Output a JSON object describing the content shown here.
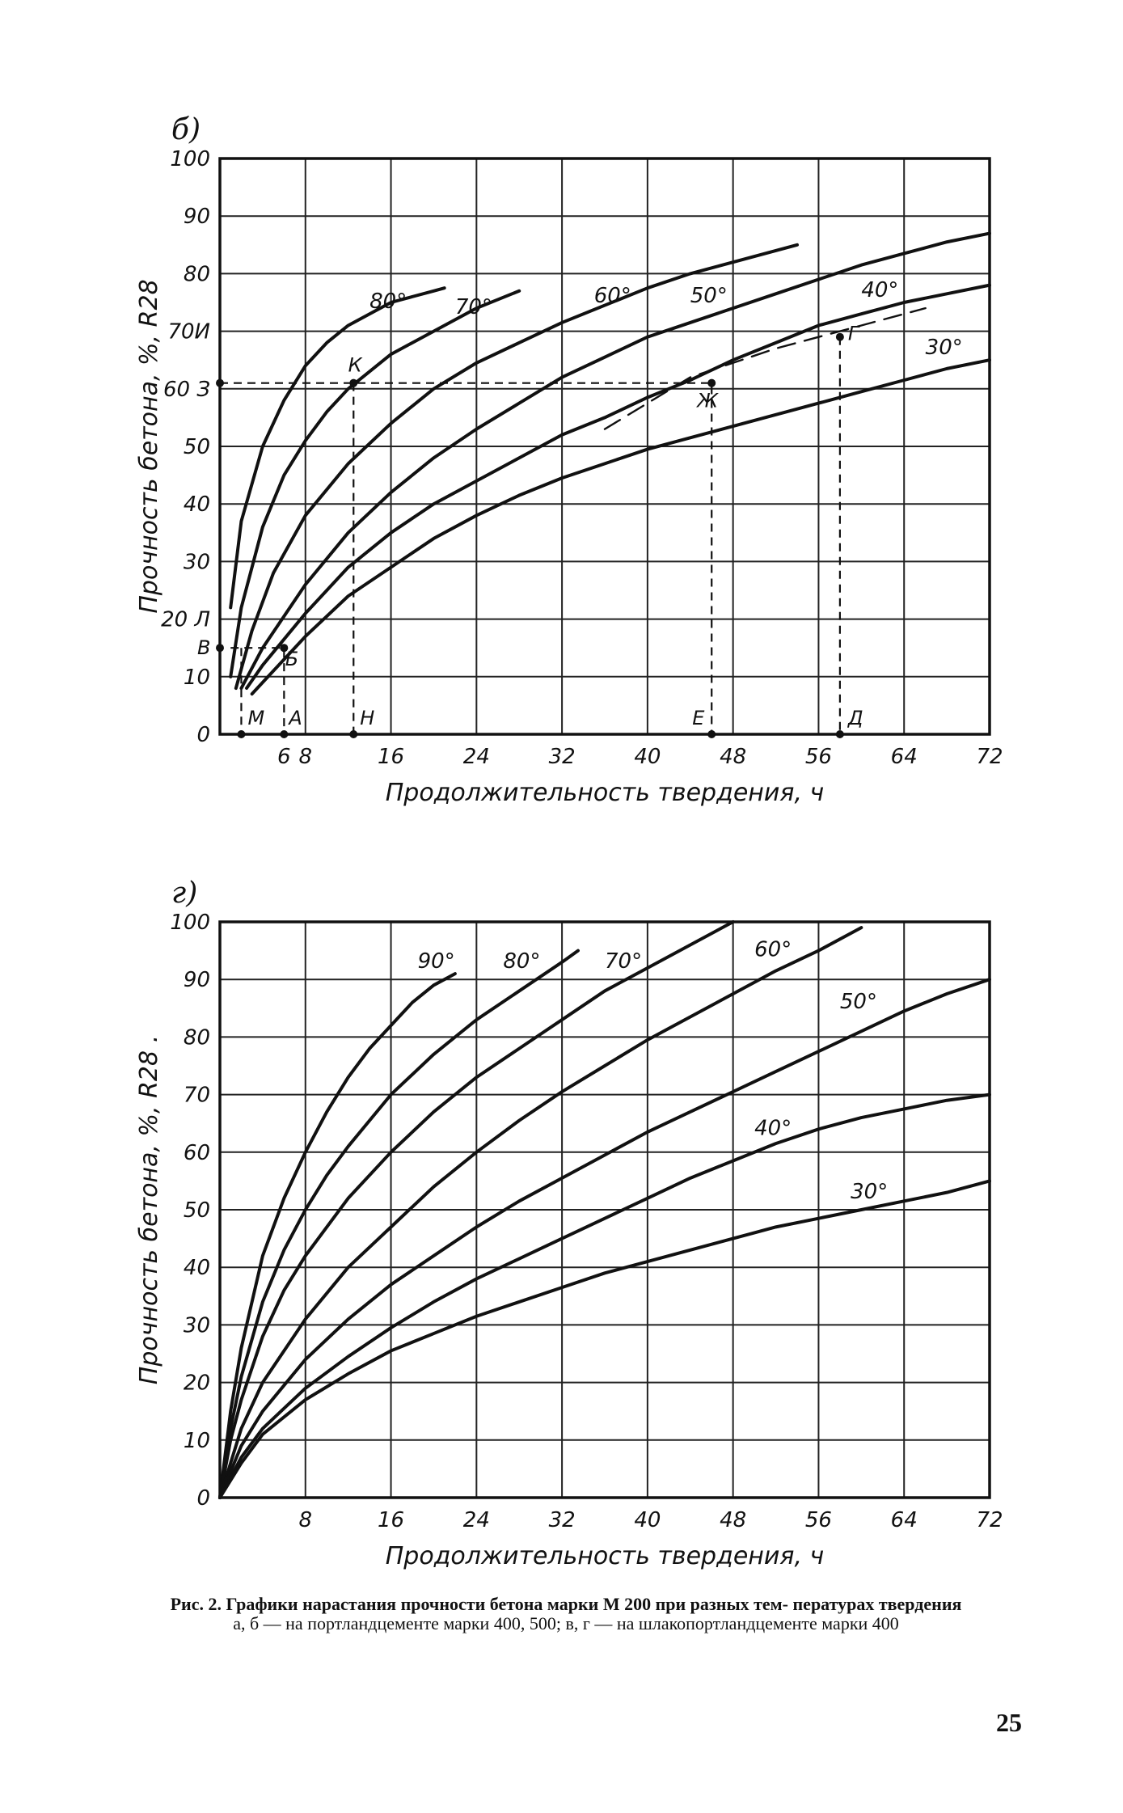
{
  "page": {
    "number": "25"
  },
  "caption": {
    "title": "Рис. 2. Графики нарастания прочности бетона марки М 200 при разных тем- пературах твердения",
    "note": "а, б — на портландцементе марки 400, 500; в, г — на шлакопортландцементе марки 400"
  },
  "chart_data": [
    {
      "panel": "б)",
      "type": "line",
      "xlabel": "Продолжительность твердения, ч",
      "ylabel": "Прочность бетона, %, R28",
      "xlim": [
        0,
        72
      ],
      "ylim": [
        0,
        100
      ],
      "grid": true,
      "x_ticks": [
        "6",
        "8",
        "16",
        "24",
        "32",
        "40",
        "48",
        "56",
        "64",
        "72"
      ],
      "x_tick_values": [
        6,
        8,
        16,
        24,
        32,
        40,
        48,
        56,
        64,
        72
      ],
      "y_ticks": [
        "0",
        "10",
        "20 Л",
        "30",
        "40",
        "50",
        "60 З",
        "70И",
        "80",
        "90",
        "100"
      ],
      "y_tick_values": [
        0,
        10,
        20,
        30,
        40,
        50,
        60,
        70,
        80,
        90,
        100
      ],
      "series": [
        {
          "name": "80°",
          "label_at": [
            14,
            74
          ],
          "x": [
            1,
            2,
            4,
            6,
            8,
            10,
            12,
            14,
            16,
            18,
            20,
            21
          ],
          "y": [
            22,
            37,
            50,
            58,
            64,
            68,
            71,
            73,
            75,
            76,
            77,
            77.5
          ]
        },
        {
          "name": "70°",
          "label_at": [
            22,
            73
          ],
          "x": [
            1,
            2,
            4,
            6,
            8,
            10,
            12,
            14,
            16,
            18,
            20,
            22,
            24,
            26,
            28
          ],
          "y": [
            10,
            22,
            36,
            45,
            51,
            56,
            60,
            63,
            66,
            68,
            70,
            72,
            74,
            75.5,
            77
          ]
        },
        {
          "name": "60°",
          "label_at": [
            35,
            75
          ],
          "x": [
            1.5,
            3,
            5,
            8,
            12,
            16,
            20,
            24,
            28,
            32,
            36,
            40,
            44,
            48,
            52,
            54
          ],
          "y": [
            8,
            18,
            28,
            38,
            47,
            54,
            60,
            64.5,
            68,
            71.5,
            74.5,
            77.5,
            80,
            82,
            84,
            85
          ]
        },
        {
          "name": "50°",
          "label_at": [
            44,
            75
          ],
          "x": [
            2,
            4,
            8,
            12,
            16,
            20,
            24,
            28,
            32,
            36,
            40,
            44,
            48,
            52,
            56,
            60,
            64,
            68,
            72
          ],
          "y": [
            8,
            15,
            26,
            35,
            42,
            48,
            53,
            57.5,
            62,
            65.5,
            69,
            71.5,
            74,
            76.5,
            79,
            81.5,
            83.5,
            85.5,
            87
          ]
        },
        {
          "name": "40°",
          "label_at": [
            60,
            76
          ],
          "x": [
            2.5,
            4,
            8,
            12,
            16,
            20,
            24,
            28,
            32,
            36,
            40,
            44,
            48,
            52,
            56,
            60,
            64,
            68,
            72
          ],
          "y": [
            8,
            12,
            21,
            29,
            35,
            40,
            44,
            48,
            52,
            55,
            58.5,
            61.5,
            65,
            68,
            71,
            73,
            75,
            76.5,
            78
          ]
        },
        {
          "name": "30°",
          "label_at": [
            66,
            66
          ],
          "x": [
            3,
            4,
            8,
            12,
            16,
            20,
            24,
            28,
            32,
            36,
            40,
            44,
            48,
            52,
            56,
            60,
            64,
            68,
            72
          ],
          "y": [
            7,
            9,
            17,
            24,
            29,
            34,
            38,
            41.5,
            44.5,
            47,
            49.5,
            51.5,
            53.5,
            55.5,
            57.5,
            59.5,
            61.5,
            63.5,
            65
          ]
        },
        {
          "name": "",
          "style": "dashed",
          "x": [
            36,
            44,
            52,
            60,
            66
          ],
          "y": [
            53,
            62,
            67,
            71,
            74
          ]
        }
      ],
      "annotations": [
        {
          "text": "К",
          "x": 12,
          "y": 61,
          "dx": 0,
          "dy": -14
        },
        {
          "text": "Ж",
          "x": 46,
          "y": 61,
          "dx": -18,
          "dy": 30
        },
        {
          "text": "Г",
          "x": 58,
          "y": 69,
          "dx": 10,
          "dy": 4
        },
        {
          "text": "Б",
          "x": 5.5,
          "y": 15,
          "dx": 8,
          "dy": 22
        },
        {
          "text": "В",
          "x": 0,
          "y": 15,
          "dx": -28,
          "dy": 8
        },
        {
          "text": "М",
          "x": 2,
          "y": 0,
          "dx": 8,
          "dy": -12
        },
        {
          "text": "А",
          "x": 6,
          "y": 0,
          "dx": 6,
          "dy": -12
        },
        {
          "text": "Н",
          "x": 12.5,
          "y": 0,
          "dx": 8,
          "dy": -12
        },
        {
          "text": "Е",
          "x": 46,
          "y": 0,
          "dx": -24,
          "dy": -12
        },
        {
          "text": "Д",
          "x": 58,
          "y": 0,
          "dx": 10,
          "dy": -12
        }
      ],
      "guides": [
        {
          "x": [
            0,
            46,
            46
          ],
          "y": [
            61,
            61,
            0
          ]
        },
        {
          "x": [
            12.5,
            12.5
          ],
          "y": [
            61,
            0
          ]
        },
        {
          "x": [
            58,
            58
          ],
          "y": [
            69,
            0
          ]
        },
        {
          "x": [
            1,
            6,
            6
          ],
          "y": [
            15,
            15,
            0
          ]
        },
        {
          "x": [
            2,
            2
          ],
          "y": [
            15,
            0
          ]
        }
      ],
      "points": [
        {
          "x": 12.5,
          "y": 61
        },
        {
          "x": 46,
          "y": 61
        },
        {
          "x": 58,
          "y": 69
        },
        {
          "x": 6,
          "y": 15
        },
        {
          "x": 0,
          "y": 61
        },
        {
          "x": 0,
          "y": 15
        },
        {
          "x": 2,
          "y": 0
        },
        {
          "x": 6,
          "y": 0
        },
        {
          "x": 12.5,
          "y": 0
        },
        {
          "x": 46,
          "y": 0
        },
        {
          "x": 58,
          "y": 0
        }
      ]
    },
    {
      "panel": "г)",
      "type": "line",
      "xlabel": "Продолжительность твердения, ч",
      "ylabel": "Прочность бетона, %, R28 .",
      "xlim": [
        0,
        72
      ],
      "ylim": [
        0,
        100
      ],
      "grid": true,
      "x_ticks": [
        "8",
        "16",
        "24",
        "32",
        "40",
        "48",
        "56",
        "64",
        "72"
      ],
      "x_tick_values": [
        8,
        16,
        24,
        32,
        40,
        48,
        56,
        64,
        72
      ],
      "y_ticks": [
        "0",
        "10",
        "20",
        "30",
        "40",
        "50",
        "60",
        "70",
        "80",
        "90",
        "100"
      ],
      "y_tick_values": [
        0,
        10,
        20,
        30,
        40,
        50,
        60,
        70,
        80,
        90,
        100
      ],
      "series": [
        {
          "name": "90°",
          "label_at": [
            18.5,
            92
          ],
          "x": [
            0,
            1,
            2,
            4,
            6,
            8,
            10,
            12,
            14,
            16,
            18,
            20,
            22
          ],
          "y": [
            0,
            15,
            26,
            42,
            52,
            60,
            67,
            73,
            78,
            82,
            86,
            89,
            91
          ]
        },
        {
          "name": "80°",
          "label_at": [
            26.5,
            92
          ],
          "x": [
            0,
            1,
            2,
            4,
            6,
            8,
            10,
            12,
            16,
            20,
            24,
            28,
            32,
            33.5
          ],
          "y": [
            0,
            12,
            21,
            34,
            43,
            50,
            56,
            61,
            70,
            77,
            83,
            88,
            93,
            95
          ]
        },
        {
          "name": "70°",
          "label_at": [
            36,
            92
          ],
          "x": [
            0,
            1,
            2,
            4,
            6,
            8,
            12,
            16,
            20,
            24,
            28,
            32,
            36,
            40,
            44,
            48
          ],
          "y": [
            0,
            10,
            17,
            28,
            36,
            42,
            52,
            60,
            67,
            73,
            78,
            83,
            88,
            92,
            96,
            100
          ]
        },
        {
          "name": "60°",
          "label_at": [
            50,
            94
          ],
          "x": [
            0,
            2,
            4,
            8,
            12,
            16,
            20,
            24,
            28,
            32,
            36,
            40,
            44,
            48,
            52,
            56,
            60
          ],
          "y": [
            0,
            12,
            20,
            31,
            40,
            47,
            54,
            60,
            65.5,
            70.5,
            75,
            79.5,
            83.5,
            87.5,
            91.5,
            95,
            99
          ]
        },
        {
          "name": "50°",
          "label_at": [
            58,
            85
          ],
          "x": [
            0,
            2,
            4,
            8,
            12,
            16,
            20,
            24,
            28,
            32,
            36,
            40,
            44,
            48,
            52,
            56,
            60,
            64,
            68,
            72
          ],
          "y": [
            0,
            9,
            15,
            24,
            31,
            37,
            42,
            47,
            51.5,
            55.5,
            59.5,
            63.5,
            67,
            70.5,
            74,
            77.5,
            81,
            84.5,
            87.5,
            90
          ]
        },
        {
          "name": "40°",
          "label_at": [
            50,
            63
          ],
          "x": [
            0,
            2,
            4,
            8,
            12,
            16,
            20,
            24,
            28,
            32,
            36,
            40,
            44,
            48,
            52,
            56,
            60,
            64,
            68,
            72
          ],
          "y": [
            0,
            7,
            12,
            19,
            24.5,
            29.5,
            34,
            38,
            41.5,
            45,
            48.5,
            52,
            55.5,
            58.5,
            61.5,
            64,
            66,
            67.5,
            69,
            70
          ]
        },
        {
          "name": "30°",
          "label_at": [
            59,
            52
          ],
          "x": [
            0,
            2,
            4,
            8,
            12,
            16,
            20,
            24,
            28,
            32,
            36,
            40,
            44,
            48,
            52,
            56,
            60,
            64,
            68,
            72
          ],
          "y": [
            0,
            6,
            11,
            17,
            21.5,
            25.5,
            28.5,
            31.5,
            34,
            36.5,
            39,
            41,
            43,
            45,
            47,
            48.5,
            50,
            51.5,
            53,
            55
          ]
        }
      ]
    }
  ]
}
